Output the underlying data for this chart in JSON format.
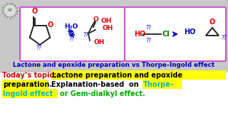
{
  "bg_top": "#c8c8c8",
  "bg_bottom": "#ffffff",
  "box_border": "#cc55cc",
  "bond_color": "#222222",
  "red": "#dd0000",
  "blue_dark": "#0000cc",
  "blue": "#0000ff",
  "green_cl": "#007700",
  "cyan": "#00bbbb",
  "green_text": "#00aa00",
  "yellow_hl": "#ffff00",
  "title_text": "Lactone and epoxide preparation vs Thorpe–Ingold effect",
  "today_red": "Today’s topic: ",
  "line2a": "Lactone preparation and epoxide",
  "line2b": "preparation.",
  "line3a": "Explanation-based  on",
  "line3b": "Thorpe–",
  "line4a": "Ingold effect",
  "line4b": "or Gem-dialkyl effect."
}
